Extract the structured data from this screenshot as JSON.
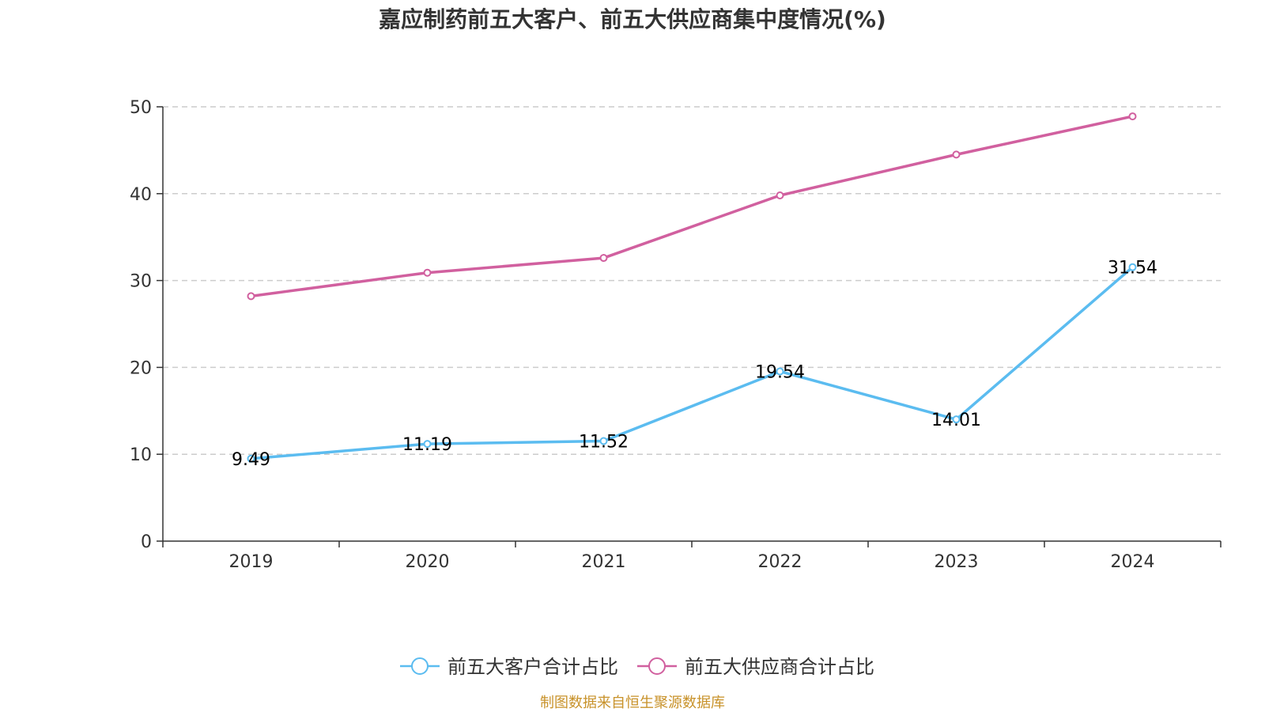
{
  "chart_data": {
    "type": "line",
    "title": "嘉应制药前五大客户、前五大供应商集中度情况(%)",
    "categories": [
      "2019",
      "2020",
      "2021",
      "2022",
      "2023",
      "2024"
    ],
    "ylim": [
      0,
      50
    ],
    "yticks": [
      "0",
      "10",
      "20",
      "30",
      "40",
      "50"
    ],
    "grid": true,
    "legend_position": "bottom-center",
    "series": [
      {
        "name": "前五大客户合计占比",
        "color": "#5bbcf0",
        "values": [
          9.49,
          11.19,
          11.52,
          19.54,
          14.01,
          31.54
        ],
        "labels": [
          "9.49",
          "11.19",
          "11.52",
          "19.54",
          "14.01",
          "31.54"
        ]
      },
      {
        "name": "前五大供应商合计占比",
        "color": "#d1609f",
        "values": [
          28.2,
          30.9,
          32.6,
          39.8,
          44.5,
          48.9
        ]
      }
    ],
    "source": "制图数据来自恒生聚源数据库",
    "source_color": "#c8922a"
  }
}
